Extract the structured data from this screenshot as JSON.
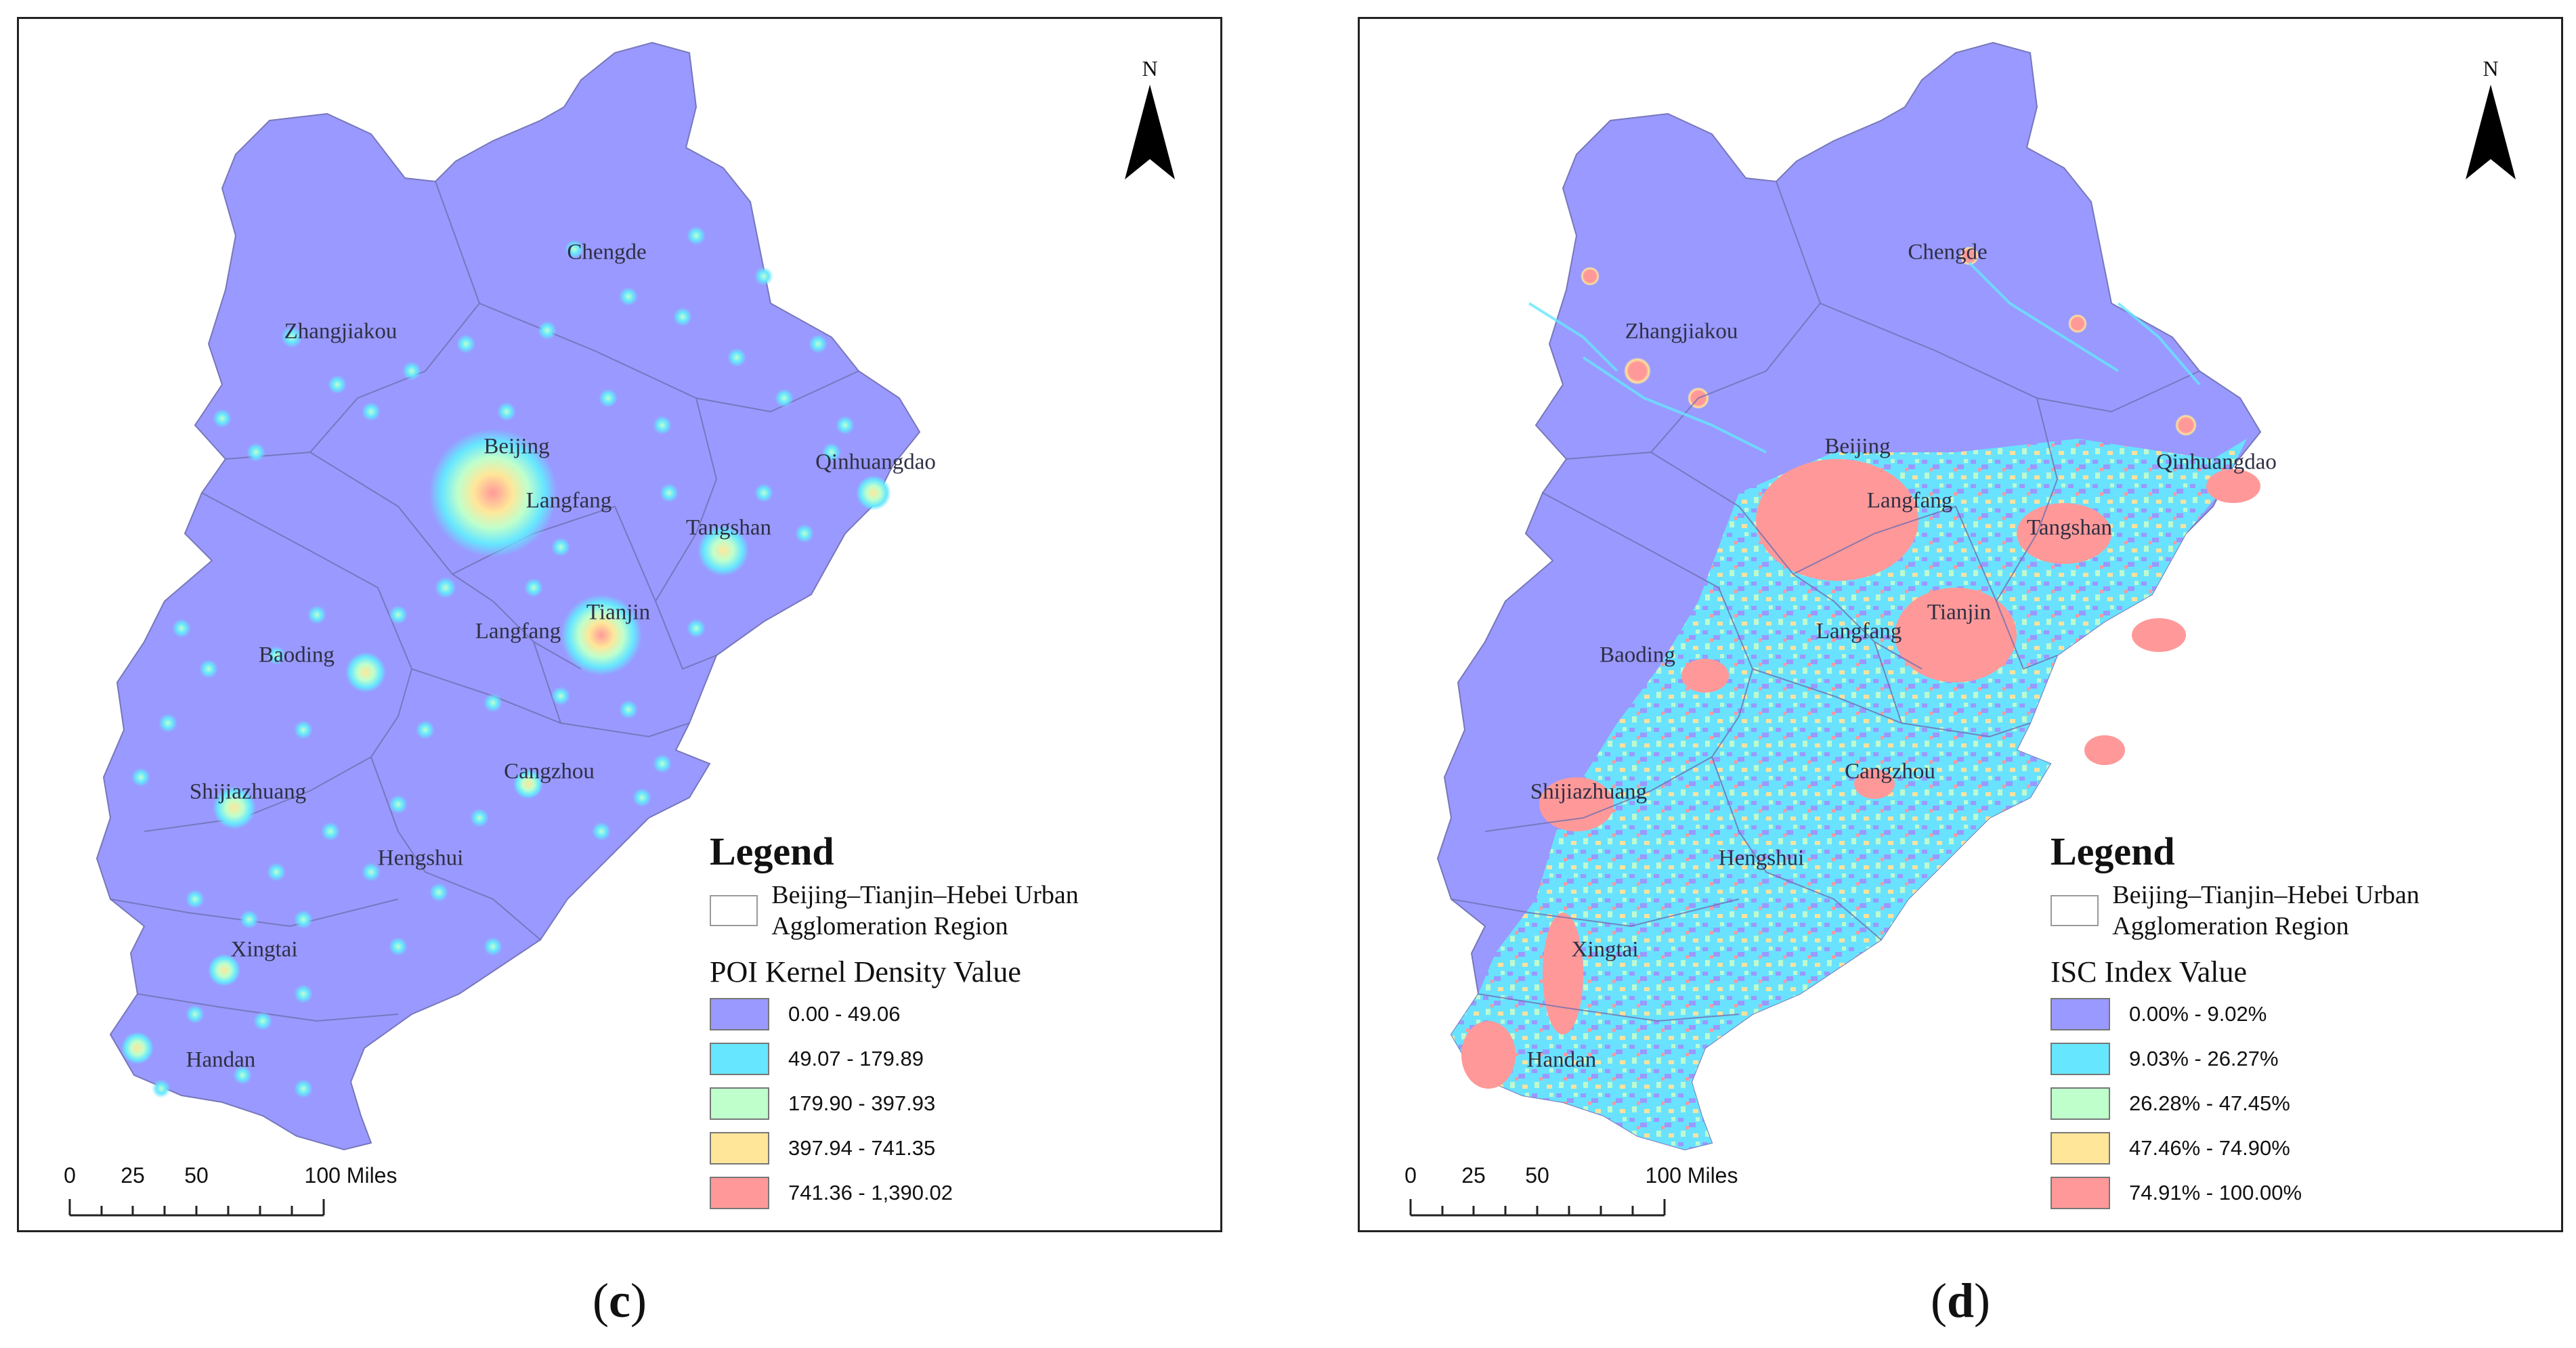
{
  "panels": [
    {
      "id": "c",
      "caption_letter": "c",
      "north_label": "N",
      "legend": {
        "title": "Legend",
        "region_label": "Beijing–Tianjin–Hebei Urban Agglomeration Region",
        "value_title": "POI Kernel Density Value",
        "classes": [
          {
            "label": "0.00 - 49.06",
            "color": "#9999FF"
          },
          {
            "label": "49.07 - 179.89",
            "color": "#66E6FF"
          },
          {
            "label": "179.90 - 397.93",
            "color": "#BFFFCC"
          },
          {
            "label": "397.94 - 741.35",
            "color": "#FFE699"
          },
          {
            "label": "741.36 - 1,390.02",
            "color": "#FF9999"
          }
        ]
      },
      "scale": {
        "ticks": [
          "0",
          "25",
          "50",
          "100 Miles"
        ]
      },
      "cities": [
        "Chengde",
        "Zhangjiakou",
        "Beijing",
        "Langfang",
        "Qinhuangdao",
        "Tangshan",
        "Tianjin",
        "Langfang",
        "Baoding",
        "Cangzhou",
        "Shijiazhuang",
        "Hengshui",
        "Xingtai",
        "Handan"
      ]
    },
    {
      "id": "d",
      "caption_letter": "d",
      "north_label": "N",
      "legend": {
        "title": "Legend",
        "region_label": "Beijing–Tianjin–Hebei Urban Agglomeration Region",
        "value_title": "ISC Index Value",
        "classes": [
          {
            "label": "0.00% - 9.02%",
            "color": "#9999FF"
          },
          {
            "label": "9.03% - 26.27%",
            "color": "#66E6FF"
          },
          {
            "label": "26.28% - 47.45%",
            "color": "#BFFFCC"
          },
          {
            "label": "47.46% - 74.90%",
            "color": "#FFE699"
          },
          {
            "label": "74.91% - 100.00%",
            "color": "#FF9999"
          }
        ]
      },
      "scale": {
        "ticks": [
          "0",
          "25",
          "50",
          "100 Miles"
        ]
      },
      "cities": [
        "Chengde",
        "Zhangjiakou",
        "Beijing",
        "Langfang",
        "Qinhuangdao",
        "Tangshan",
        "Tianjin",
        "Langfang",
        "Baoding",
        "Cangzhou",
        "Shijiazhuang",
        "Hengshui",
        "Xingtai",
        "Handan"
      ]
    }
  ]
}
